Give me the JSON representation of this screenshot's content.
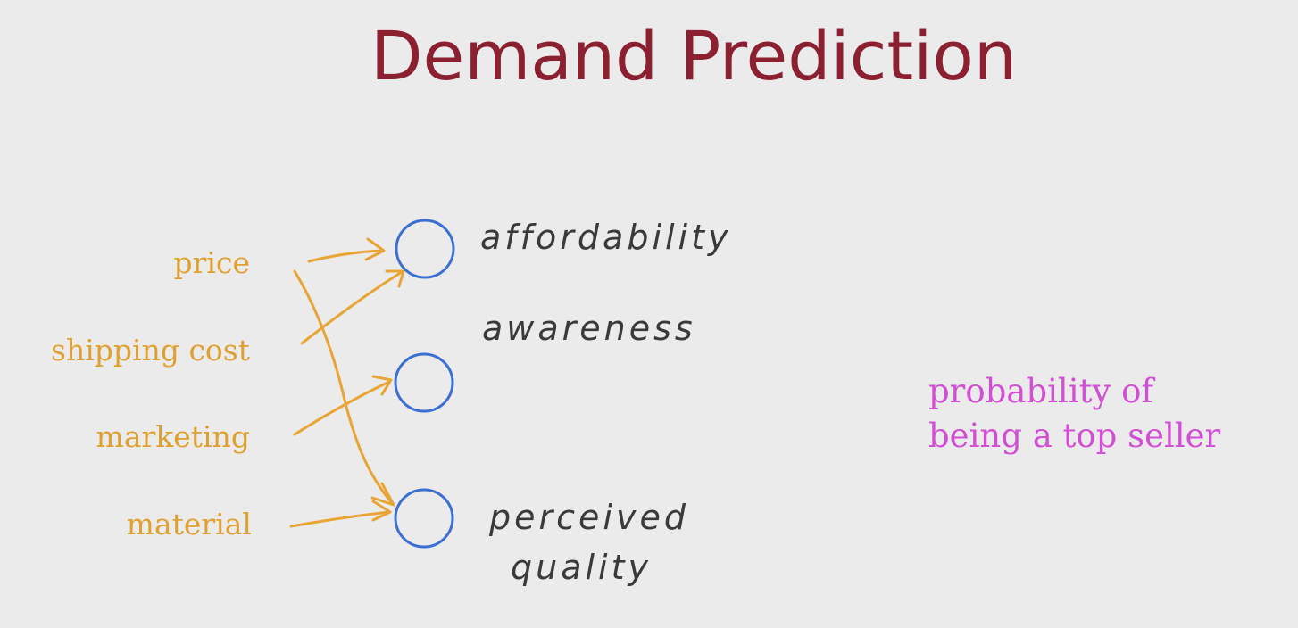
{
  "title": "Demand Prediction",
  "inputs": {
    "price": "price",
    "shipping_cost": "shipping cost",
    "marketing": "marketing",
    "material": "material"
  },
  "hidden_units": {
    "affordability": "affordability",
    "awareness": "awareness",
    "perceived_line1": "perceived",
    "perceived_line2": "quality"
  },
  "output": {
    "line1": "probability of",
    "line2": "being a top seller"
  },
  "colors": {
    "title": "#8b2130",
    "inputs": "#e0a030",
    "arrows": "#e8a535",
    "neurons": "#3b6fd1",
    "hidden_labels": "#3a3a3a",
    "output": "#d24ed4",
    "background": "#ebebeb"
  }
}
